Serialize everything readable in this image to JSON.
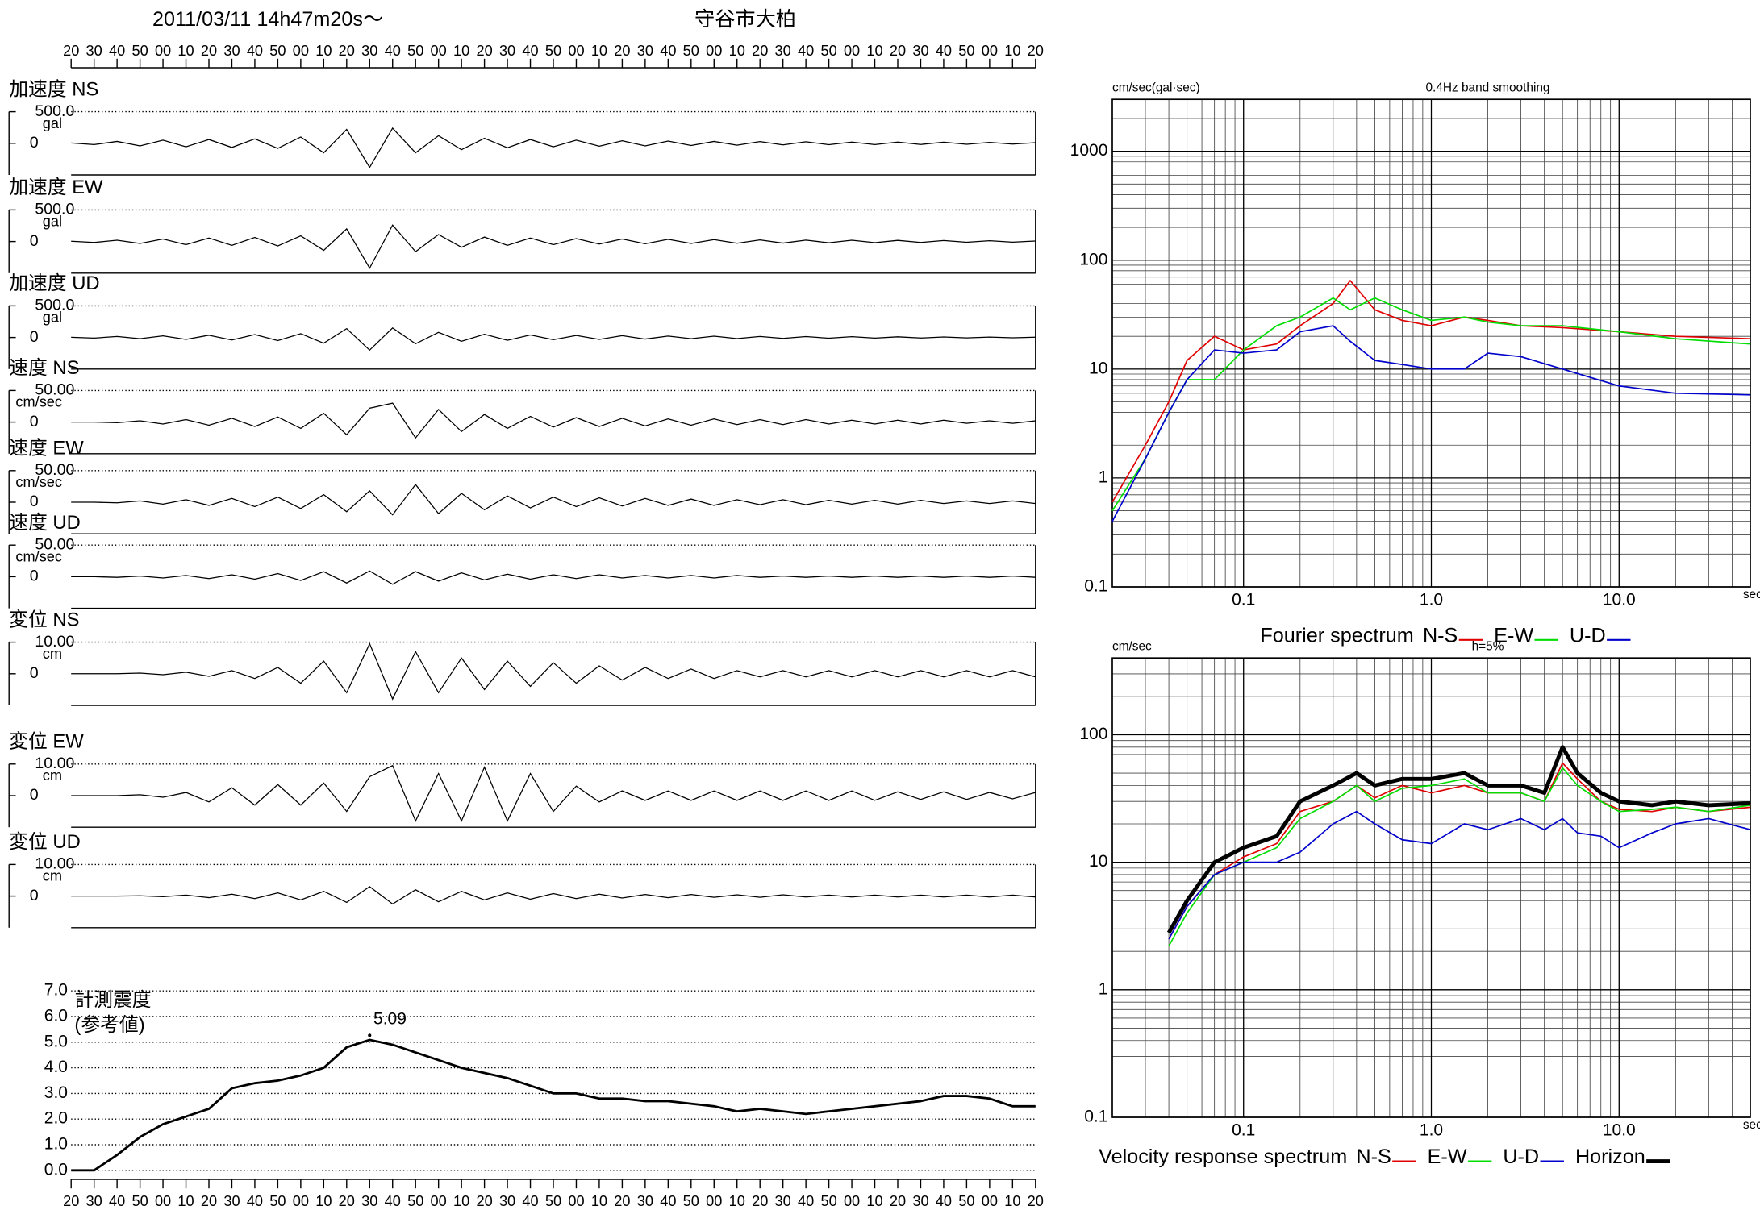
{
  "chart_data": [
    {
      "type": "waveform",
      "title": "2011/03/11  14h47m20s〜",
      "subtitle": "守谷市大柏",
      "xlim": [
        0,
        420
      ],
      "xticks": [
        {
          "value": 0,
          "label": "20"
        },
        {
          "value": 10,
          "label": "30"
        },
        {
          "value": 20,
          "label": "40"
        },
        {
          "value": 30,
          "label": "50"
        },
        {
          "value": 40,
          "label": "00"
        },
        {
          "value": 50,
          "label": "10"
        },
        {
          "value": 60,
          "label": "20"
        },
        {
          "value": 70,
          "label": "30"
        },
        {
          "value": 80,
          "label": "40"
        },
        {
          "value": 90,
          "label": "50"
        },
        {
          "value": 100,
          "label": "00"
        },
        {
          "value": 110,
          "label": "10"
        },
        {
          "value": 120,
          "label": "20"
        },
        {
          "value": 130,
          "label": "30"
        },
        {
          "value": 140,
          "label": "40"
        },
        {
          "value": 150,
          "label": "50"
        },
        {
          "value": 160,
          "label": "00"
        },
        {
          "value": 170,
          "label": "10"
        },
        {
          "value": 180,
          "label": "20"
        },
        {
          "value": 190,
          "label": "30"
        },
        {
          "value": 200,
          "label": "40"
        },
        {
          "value": 210,
          "label": "50"
        },
        {
          "value": 220,
          "label": "00"
        },
        {
          "value": 230,
          "label": "10"
        },
        {
          "value": 240,
          "label": "20"
        },
        {
          "value": 250,
          "label": "30"
        },
        {
          "value": 260,
          "label": "40"
        },
        {
          "value": 270,
          "label": "50"
        },
        {
          "value": 280,
          "label": "00"
        },
        {
          "value": 290,
          "label": "10"
        },
        {
          "value": 300,
          "label": "20"
        },
        {
          "value": 310,
          "label": "30"
        },
        {
          "value": 320,
          "label": "40"
        },
        {
          "value": 330,
          "label": "50"
        },
        {
          "value": 340,
          "label": "00"
        },
        {
          "value": 350,
          "label": "10"
        },
        {
          "value": 360,
          "label": "20"
        },
        {
          "value": 370,
          "label": "30"
        },
        {
          "value": 380,
          "label": "40"
        },
        {
          "value": 390,
          "label": "50"
        },
        {
          "value": 400,
          "label": "00"
        },
        {
          "value": 410,
          "label": "10"
        },
        {
          "value": 420,
          "label": "20"
        }
      ],
      "x": [
        0,
        10,
        20,
        30,
        40,
        50,
        60,
        70,
        80,
        90,
        100,
        110,
        120,
        130,
        140,
        150,
        160,
        170,
        180,
        190,
        200,
        210,
        220,
        230,
        240,
        250,
        260,
        270,
        280,
        290,
        300,
        310,
        320,
        330,
        340,
        350,
        360,
        370,
        380,
        390,
        400,
        410,
        420
      ],
      "traces": [
        {
          "name": "加速度 NS",
          "unit": "gal",
          "ylim": [
            -500,
            500
          ],
          "yticks": [
            0,
            {
              "value": 500,
              "label": "500.0"
            }
          ],
          "values": [
            5,
            -20,
            30,
            -40,
            50,
            -55,
            60,
            -65,
            70,
            -80,
            100,
            -150,
            220,
            -380,
            240,
            -150,
            120,
            -100,
            80,
            -70,
            60,
            -55,
            50,
            -45,
            40,
            -40,
            35,
            -35,
            30,
            -30,
            28,
            -25,
            25,
            -22,
            20,
            -20,
            20,
            -18,
            18,
            -15,
            15,
            -12,
            10
          ]
        },
        {
          "name": "加速度 EW",
          "unit": "gal",
          "ylim": [
            -500,
            500
          ],
          "yticks": [
            0,
            {
              "value": 500,
              "label": "500.0"
            }
          ],
          "values": [
            5,
            -15,
            20,
            -30,
            40,
            -50,
            55,
            -60,
            65,
            -70,
            90,
            -140,
            200,
            -420,
            260,
            -160,
            110,
            -90,
            70,
            -60,
            55,
            -50,
            45,
            -40,
            40,
            -35,
            35,
            -30,
            30,
            -28,
            25,
            -25,
            22,
            -20,
            20,
            -18,
            18,
            -15,
            15,
            -12,
            12,
            -10,
            8
          ]
        },
        {
          "name": "加速度 UD",
          "unit": "gal",
          "ylim": [
            -500,
            500
          ],
          "yticks": [
            0,
            {
              "value": 500,
              "label": "500.0"
            }
          ],
          "values": [
            3,
            -10,
            15,
            -20,
            25,
            -30,
            35,
            -40,
            45,
            -50,
            60,
            -90,
            140,
            -200,
            150,
            -100,
            80,
            -60,
            50,
            -45,
            40,
            -35,
            32,
            -30,
            28,
            -25,
            22,
            -20,
            20,
            -18,
            16,
            -15,
            14,
            -12,
            12,
            -10,
            10,
            -9,
            8,
            -7,
            6,
            -5,
            4
          ]
        },
        {
          "name": "速度 NS",
          "unit": "cm/sec",
          "ylim": [
            -50,
            50
          ],
          "yticks": [
            0,
            {
              "value": 50,
              "label": "50.00"
            }
          ],
          "values": [
            0,
            0,
            -1,
            2,
            -3,
            4,
            -5,
            6,
            -7,
            8,
            -10,
            14,
            -20,
            22,
            30,
            -25,
            20,
            -15,
            12,
            -10,
            9,
            -8,
            7,
            -7,
            6,
            -6,
            5,
            -5,
            5,
            -4,
            4,
            -4,
            4,
            -3,
            3,
            -3,
            3,
            -3,
            3,
            -2,
            2,
            -2,
            2
          ]
        },
        {
          "name": "速度 EW",
          "unit": "cm/sec",
          "ylim": [
            -50,
            50
          ],
          "yticks": [
            0,
            {
              "value": 50,
              "label": "50.00"
            }
          ],
          "values": [
            0,
            0,
            -1,
            2,
            -3,
            4,
            -5,
            6,
            -7,
            8,
            -10,
            12,
            -15,
            18,
            -20,
            28,
            -18,
            14,
            -12,
            10,
            -9,
            8,
            -7,
            7,
            -6,
            6,
            -5,
            5,
            -5,
            4,
            -4,
            4,
            -4,
            3,
            -3,
            3,
            -3,
            3,
            -2,
            2,
            -2,
            2,
            -2
          ]
        },
        {
          "name": "速度 UD",
          "unit": "cm/sec",
          "ylim": [
            -50,
            50
          ],
          "yticks": [
            0,
            {
              "value": 50,
              "label": "50.00"
            }
          ],
          "values": [
            0,
            0,
            -1,
            1,
            -2,
            2,
            -3,
            3,
            -4,
            5,
            -6,
            8,
            -10,
            9,
            -12,
            8,
            -7,
            6,
            -5,
            4,
            -4,
            3,
            -3,
            3,
            -2,
            2,
            -2,
            2,
            -2,
            2,
            -1,
            1,
            -1,
            1,
            -1,
            1,
            -1,
            1,
            -1,
            1,
            -1,
            1,
            -1
          ]
        },
        {
          "name": "変位 NS",
          "unit": "cm",
          "ylim": [
            -10,
            10
          ],
          "yticks": [
            0,
            {
              "value": 10,
              "label": "10.00"
            }
          ],
          "values": [
            0,
            0,
            0,
            0.2,
            -0.3,
            0.5,
            -0.8,
            1,
            -1.5,
            2,
            -3,
            4,
            -6,
            9.5,
            -8,
            7,
            -6,
            5,
            -5,
            4,
            -4,
            3.5,
            -3,
            2.5,
            -2,
            2,
            -1.5,
            1.5,
            -1.5,
            1,
            -1,
            1,
            -1,
            1,
            -1,
            1,
            -1,
            1,
            -1,
            1,
            -1,
            1,
            -1
          ]
        },
        {
          "name": "変位 EW",
          "unit": "cm",
          "ylim": [
            -10,
            10
          ],
          "yticks": [
            0,
            {
              "value": 10,
              "label": "10.00"
            }
          ],
          "values": [
            0,
            0,
            0,
            0.3,
            -0.5,
            1,
            -2,
            2.5,
            -3,
            3.5,
            -3,
            4,
            -5,
            6,
            9.5,
            -8,
            7,
            -8,
            9,
            -8,
            7,
            -5,
            3,
            -2,
            1.5,
            -1.5,
            1.5,
            -1.5,
            1.5,
            -1.5,
            1.5,
            -1.5,
            1.5,
            -1.5,
            1.5,
            -1.5,
            1.2,
            -1.2,
            1.2,
            -1.2,
            1,
            -1,
            1
          ]
        },
        {
          "name": "変位 UD",
          "unit": "cm",
          "ylim": [
            -10,
            10
          ],
          "yticks": [
            0,
            {
              "value": 10,
              "label": "10.00"
            }
          ],
          "values": [
            0,
            0,
            0,
            0.1,
            -0.2,
            0.3,
            -0.5,
            0.6,
            -0.8,
            1,
            -1.2,
            1.5,
            -2,
            3,
            -2.5,
            2,
            -1.8,
            1.5,
            -1.2,
            1,
            -1,
            0.8,
            -0.8,
            0.6,
            -0.6,
            0.5,
            -0.5,
            0.5,
            -0.4,
            0.4,
            -0.4,
            0.4,
            -0.3,
            0.3,
            -0.3,
            0.3,
            -0.3,
            0.3,
            -0.3,
            0.3,
            -0.3,
            0.3,
            -0.3
          ]
        }
      ]
    },
    {
      "type": "line",
      "title": "計測震度",
      "subtitle": "(参考値)",
      "xlim": [
        0,
        420
      ],
      "ylim": [
        0,
        7
      ],
      "grid": true,
      "yticks": [
        {
          "value": 0,
          "label": "0.0"
        },
        {
          "value": 1,
          "label": "1.0"
        },
        {
          "value": 2,
          "label": "2.0"
        },
        {
          "value": 3,
          "label": "3.0"
        },
        {
          "value": 4,
          "label": "4.0"
        },
        {
          "value": 5,
          "label": "5.0"
        },
        {
          "value": 6,
          "label": "6.0"
        },
        {
          "value": 7,
          "label": "7.0"
        }
      ],
      "values": [
        0,
        0,
        0.6,
        1.3,
        1.8,
        2.1,
        2.4,
        3.2,
        3.4,
        3.5,
        3.7,
        4.0,
        4.8,
        5.09,
        4.9,
        4.6,
        4.3,
        4.0,
        3.8,
        3.6,
        3.3,
        3.0,
        3.0,
        2.8,
        2.8,
        2.7,
        2.7,
        2.6,
        2.5,
        2.3,
        2.4,
        2.3,
        2.2,
        2.3,
        2.4,
        2.5,
        2.6,
        2.7,
        2.9,
        2.9,
        2.8,
        2.5,
        2.5
      ],
      "color": "#000000",
      "annotations": [
        {
          "text": "5.09",
          "x": 130,
          "y": 5.09
        }
      ]
    },
    {
      "type": "line",
      "title": "0.4Hz band smoothing",
      "ylabel": "cm/sec(gal·sec)",
      "xlabel": "sec",
      "legend_title": "Fourier spectrum",
      "xscale": "log",
      "yscale": "log",
      "grid": true,
      "xlim": [
        0.02,
        50
      ],
      "ylim": [
        0.1,
        3000
      ],
      "xticks": [
        0.1,
        {
          "value": 1,
          "label": "1.0"
        },
        {
          "value": 10,
          "label": "10.0"
        }
      ],
      "yticks": [
        0.1,
        1,
        10,
        100,
        1000
      ],
      "x": [
        0.02,
        0.03,
        0.04,
        0.05,
        0.07,
        0.1,
        0.15,
        0.2,
        0.3,
        0.37,
        0.5,
        0.7,
        1.0,
        1.5,
        2,
        3,
        5,
        10,
        20,
        50
      ],
      "series": [
        {
          "name": "N-S",
          "color": "#e00000",
          "values": [
            0.6,
            2,
            5,
            12,
            20,
            15,
            17,
            25,
            40,
            65,
            35,
            28,
            25,
            30,
            28,
            25,
            24,
            22,
            20,
            19
          ]
        },
        {
          "name": "E-W",
          "color": "#00dd00",
          "values": [
            0.5,
            1.5,
            4,
            8,
            8,
            15,
            25,
            30,
            45,
            35,
            45,
            35,
            28,
            30,
            27,
            25,
            25,
            22,
            19,
            17
          ]
        },
        {
          "name": "U-D",
          "color": "#0000cc",
          "values": [
            0.4,
            1.5,
            4,
            8,
            15,
            14,
            15,
            22,
            25,
            18,
            12,
            11,
            10,
            10,
            14,
            13,
            10,
            7,
            6,
            5.8
          ]
        }
      ]
    },
    {
      "type": "line",
      "title": "h=5%",
      "ylabel": "cm/sec",
      "xlabel": "sec",
      "legend_title": "Velocity response spectrum",
      "xscale": "log",
      "yscale": "log",
      "grid": true,
      "xlim": [
        0.02,
        50
      ],
      "ylim": [
        0.1,
        400
      ],
      "xticks": [
        0.1,
        {
          "value": 1,
          "label": "1.0"
        },
        {
          "value": 10,
          "label": "10.0"
        }
      ],
      "yticks": [
        0.1,
        1,
        10,
        100
      ],
      "x": [
        0.04,
        0.05,
        0.07,
        0.1,
        0.15,
        0.2,
        0.3,
        0.4,
        0.5,
        0.7,
        1,
        1.5,
        2,
        3,
        4,
        5,
        6,
        8,
        10,
        15,
        20,
        30,
        50
      ],
      "series": [
        {
          "name": "N-S",
          "color": "#e00000",
          "values": [
            2.5,
            4.5,
            8,
            11,
            14,
            25,
            30,
            40,
            32,
            40,
            35,
            40,
            35,
            35,
            30,
            60,
            45,
            30,
            26,
            25,
            27,
            25,
            27
          ]
        },
        {
          "name": "E-W",
          "color": "#00dd00",
          "values": [
            2.2,
            4,
            8,
            10,
            13,
            22,
            30,
            40,
            30,
            38,
            40,
            45,
            35,
            35,
            30,
            55,
            40,
            30,
            25,
            26,
            27,
            25,
            28
          ]
        },
        {
          "name": "U-D",
          "color": "#0000cc",
          "values": [
            2.5,
            4.5,
            8,
            10,
            10,
            12,
            20,
            25,
            20,
            15,
            14,
            20,
            18,
            22,
            18,
            22,
            17,
            16,
            13,
            17,
            20,
            22,
            18
          ]
        },
        {
          "name": "Horizon",
          "color": "#000000",
          "linewidth": 3.5,
          "values": [
            2.8,
            5,
            10,
            13,
            16,
            30,
            40,
            50,
            40,
            45,
            45,
            50,
            40,
            40,
            35,
            80,
            50,
            35,
            30,
            28,
            30,
            28,
            29
          ]
        }
      ]
    }
  ]
}
